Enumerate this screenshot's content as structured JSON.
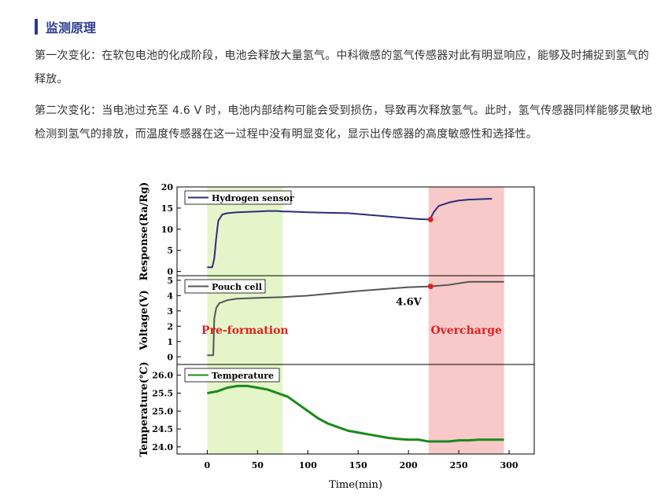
{
  "section": {
    "title": "监测原理"
  },
  "paragraphs": [
    "第一次变化：在软包电池的化成阶段，电池会释放大量氢气。中科微感的氢气传感器对此有明显响应，能够及时捕捉到氢气的释放。",
    "第二次变化：当电池过充至 4.6 V 时，电池内部结构可能会受到损伤，导致再次释放氢气。此时，氢气传感器同样能够灵敏地检测到氢气的排放，而温度传感器在这一过程中没有明显变化，显示出传感器的高度敏感性和选择性。"
  ],
  "chart_data": {
    "type": "line",
    "xlabel": "Time(min)",
    "xlim": [
      -30,
      325
    ],
    "xticks": [
      0,
      50,
      100,
      150,
      200,
      250,
      300
    ],
    "regions": [
      {
        "name": "Pre-formation",
        "x_range": [
          0,
          75
        ],
        "color": "#e4f5c9",
        "label_color": "#e02020"
      },
      {
        "name": "Overcharge",
        "x_range": [
          220,
          295
        ],
        "color": "#f8c9c9",
        "label_color": "#e02020"
      }
    ],
    "panels": [
      {
        "ylabel": "Response(Ra/Rg)",
        "ylim": [
          -1,
          20
        ],
        "yticks": [
          0,
          5,
          10,
          15,
          20
        ],
        "series": [
          {
            "name": "Hydrogen sensor",
            "color": "#2b2d7a",
            "x": [
              0,
              5,
              7,
              9,
              11,
              15,
              20,
              30,
              40,
              50,
              60,
              70,
              75,
              80,
              90,
              100,
              120,
              140,
              160,
              180,
              200,
              210,
              220,
              222,
              225,
              230,
              240,
              250,
              260,
              270,
              280,
              283
            ],
            "y": [
              1,
              1,
              3,
              8,
              12,
              13.5,
              13.8,
              14,
              14.1,
              14.2,
              14.3,
              14.3,
              14.2,
              14.2,
              14.1,
              14,
              13.9,
              13.8,
              13.4,
              13,
              12.6,
              12.4,
              12.3,
              12.6,
              14,
              15.5,
              16.3,
              16.8,
              17,
              17.1,
              17.2,
              17.2
            ]
          }
        ],
        "marker": {
          "x": 222,
          "y": 12.3,
          "color": "#e02020"
        }
      },
      {
        "ylabel": "Voltage(V)",
        "ylim": [
          -0.5,
          5.3
        ],
        "yticks": [
          0,
          1,
          2,
          3,
          4,
          5
        ],
        "series": [
          {
            "name": "Pouch cell",
            "color": "#555555",
            "x": [
              0,
              6,
              7,
              9,
              12,
              20,
              30,
              50,
              75,
              100,
              150,
              200,
              222,
              240,
              255,
              260,
              275,
              290,
              295
            ],
            "y": [
              0.1,
              0.1,
              2.5,
              3.2,
              3.5,
              3.7,
              3.8,
              3.85,
              3.9,
              4.0,
              4.3,
              4.55,
              4.6,
              4.7,
              4.85,
              4.9,
              4.9,
              4.9,
              4.9
            ]
          }
        ],
        "marker": {
          "x": 222,
          "y": 4.6,
          "color": "#e02020"
        },
        "annotation": {
          "text": "4.6V",
          "x": 213,
          "y": 3.9
        }
      },
      {
        "ylabel": "Temperature(℃)",
        "ylim": [
          23.8,
          26.3
        ],
        "yticks": [
          24.0,
          24.5,
          25.0,
          25.5,
          26.0
        ],
        "series": [
          {
            "name": "Temperature",
            "color": "#1a8a1a",
            "x": [
              0,
              10,
              20,
              30,
              40,
              50,
              60,
              70,
              80,
              90,
              100,
              110,
              120,
              130,
              140,
              150,
              160,
              170,
              180,
              190,
              200,
              210,
              220,
              230,
              240,
              250,
              260,
              270,
              280,
              290,
              295
            ],
            "y": [
              25.5,
              25.55,
              25.65,
              25.7,
              25.7,
              25.65,
              25.6,
              25.5,
              25.4,
              25.2,
              25.0,
              24.8,
              24.65,
              24.55,
              24.45,
              24.4,
              24.35,
              24.3,
              24.25,
              24.22,
              24.2,
              24.2,
              24.15,
              24.15,
              24.15,
              24.18,
              24.18,
              24.2,
              24.2,
              24.2,
              24.2
            ]
          }
        ]
      }
    ]
  }
}
